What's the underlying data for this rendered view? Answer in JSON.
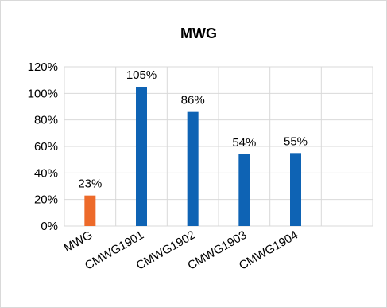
{
  "chart_data": {
    "type": "bar",
    "title": "MWG",
    "categories": [
      "MWG",
      "CMWG1901",
      "CMWG1902",
      "CMWG1903",
      "CMWG1904",
      ""
    ],
    "values": [
      0.23,
      1.05,
      0.86,
      0.54,
      0.55,
      null
    ],
    "data_labels": [
      "23%",
      "105%",
      "86%",
      "54%",
      "55%",
      ""
    ],
    "bar_colors": [
      "#ED6A2A",
      "#0E63B4",
      "#0E63B4",
      "#0E63B4",
      "#0E63B4",
      "#0E63B4"
    ],
    "ylim": [
      0,
      1.2
    ],
    "yticks": [
      0,
      0.2,
      0.4,
      0.6,
      0.8,
      1.0,
      1.2
    ],
    "ytick_labels": [
      "0%",
      "20%",
      "40%",
      "60%",
      "80%",
      "100%",
      "120%"
    ],
    "xlabel": "",
    "ylabel": "",
    "grid": true,
    "legend": "none"
  }
}
